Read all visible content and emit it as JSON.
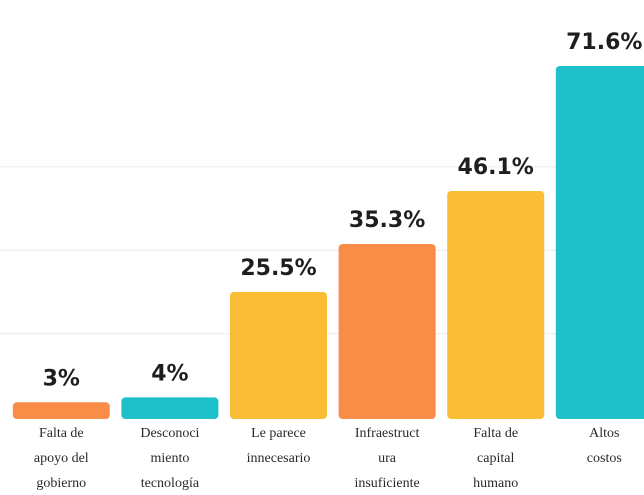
{
  "chart_data": {
    "type": "bar",
    "categories": [
      [
        "Falta de",
        "apoyo del",
        "gobierno"
      ],
      [
        "Desconoci",
        "miento",
        "tecnología"
      ],
      [
        "Le parece",
        "innecesario"
      ],
      [
        "Infraestruct",
        "ura",
        "insuficiente"
      ],
      [
        "Falta de",
        "capital",
        "humano"
      ],
      [
        "Altos",
        "costos"
      ]
    ],
    "values": [
      3,
      4,
      25.5,
      35.3,
      46.1,
      71.6
    ],
    "value_labels": [
      "3%",
      "4%",
      "25.5%",
      "35.3%",
      "46.1%",
      "71.6%"
    ],
    "colors": [
      "#f98d47",
      "#1ec0c9",
      "#fbbd35",
      "#f98d47",
      "#fbbd35",
      "#1ec0c9"
    ],
    "ylim": [
      0,
      71.6
    ],
    "grid": true,
    "title": "",
    "xlabel": "",
    "ylabel": ""
  }
}
